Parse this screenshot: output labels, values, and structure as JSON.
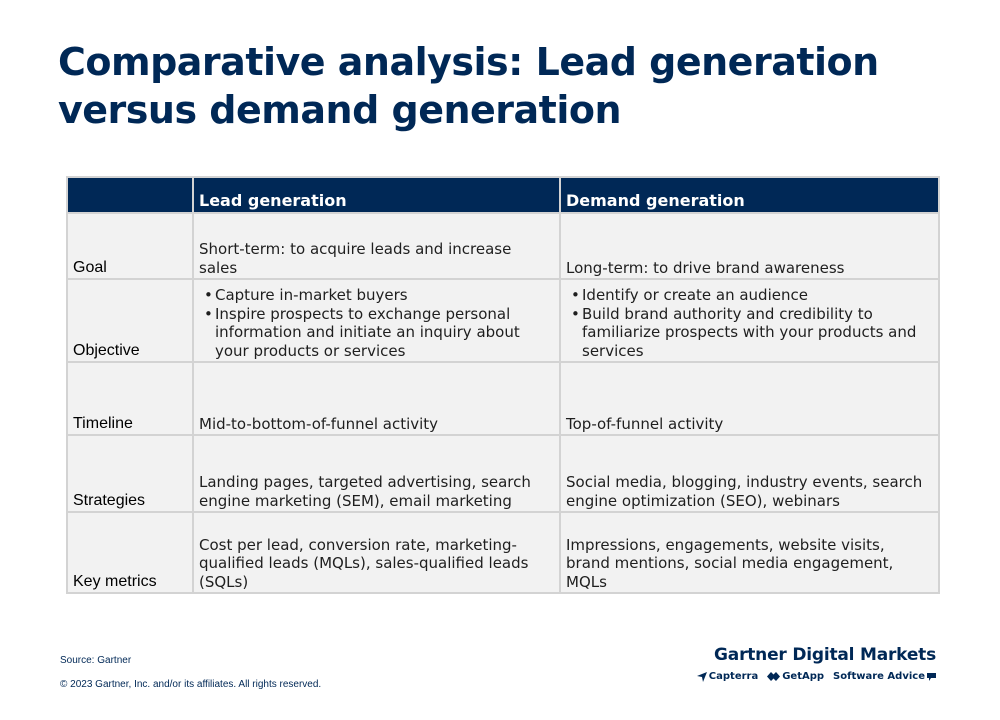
{
  "title": {
    "line1": "Comparative analysis: Lead generation",
    "line2": "versus demand generation"
  },
  "table": {
    "headers": [
      "",
      "Lead generation",
      "Demand generation"
    ],
    "rows": [
      {
        "label": "Goal",
        "lead": "Short-term: to acquire leads and increase sales",
        "demand": "Long-term: to drive brand awareness"
      },
      {
        "label": "Objective",
        "lead_bullets": [
          "Capture in-market buyers",
          "Inspire prospects to exchange personal information and initiate an inquiry about your products or services"
        ],
        "demand_bullets": [
          "Identify or create an audience",
          "Build brand authority and credibility to familiarize prospects with your products and services"
        ]
      },
      {
        "label": "Timeline",
        "lead": "Mid-to-bottom-of-funnel activity",
        "demand": "Top-of-funnel activity"
      },
      {
        "label": "Strategies",
        "lead": "Landing pages, targeted advertising, search engine marketing (SEM), email marketing",
        "demand": "Social media, blogging, industry events, search engine optimization (SEO), webinars"
      },
      {
        "label": "Key metrics",
        "lead": "Cost per lead, conversion rate, marketing-qualified leads (MQLs), sales-qualified leads (SQLs)",
        "demand": "Impressions, engagements, website visits, brand mentions, social media engagement, MQLs"
      }
    ]
  },
  "footer": {
    "source": "Source: Gartner",
    "copyright": "© 2023 Gartner, Inc. and/or its affiliates. All rights reserved.",
    "brand": "Gartner Digital Markets",
    "logos": [
      "Capterra",
      "GetApp",
      "Software Advice"
    ]
  },
  "colors": {
    "navy": "#002856",
    "cell_bg": "#f2f2f2",
    "border": "#d3d3d3"
  },
  "icons": [
    "capterra-arrow-icon",
    "getapp-icon",
    "software-advice-bubble-icon"
  ]
}
